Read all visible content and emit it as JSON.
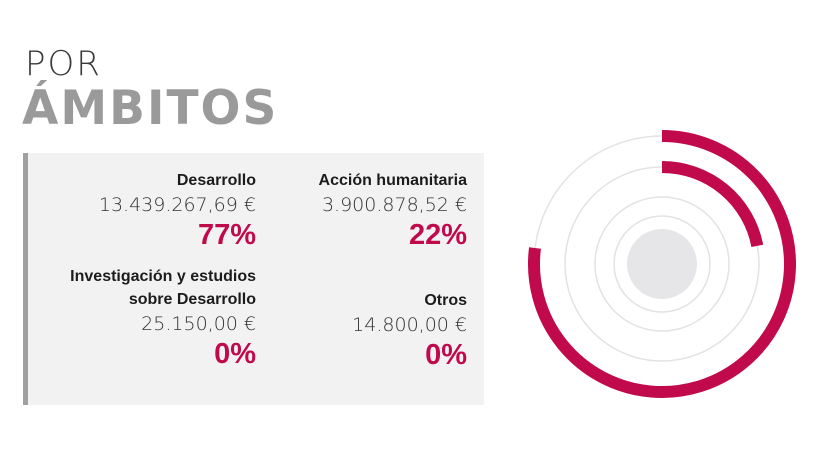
{
  "title": {
    "line1": "POR",
    "line2": "ÁMBITOS"
  },
  "colors": {
    "accent": "#c10a4b",
    "ring": "#e3e3e3",
    "center": "#e6e6e8",
    "panel": "#f2f2f3",
    "panel_border": "#a0a0a2"
  },
  "categories": [
    {
      "name": "Desarrollo",
      "amount": "13.439.267,69 €",
      "percent": "77%"
    },
    {
      "name": "Acción humanitaria",
      "amount": "3.900.878,52 €",
      "percent": "22%"
    },
    {
      "name": "Investigación y estudios sobre Desarrollo",
      "amount": "25.150,00 €",
      "percent": "0%"
    },
    {
      "name": "Otros",
      "amount": "14.800,00 €",
      "percent": "0%"
    }
  ],
  "chart_data": {
    "type": "radial-bar",
    "categories": [
      "Desarrollo",
      "Acción humanitaria",
      "Investigación y estudios sobre Desarrollo",
      "Otros"
    ],
    "values": [
      77,
      22,
      0,
      0
    ],
    "unit": "%"
  }
}
